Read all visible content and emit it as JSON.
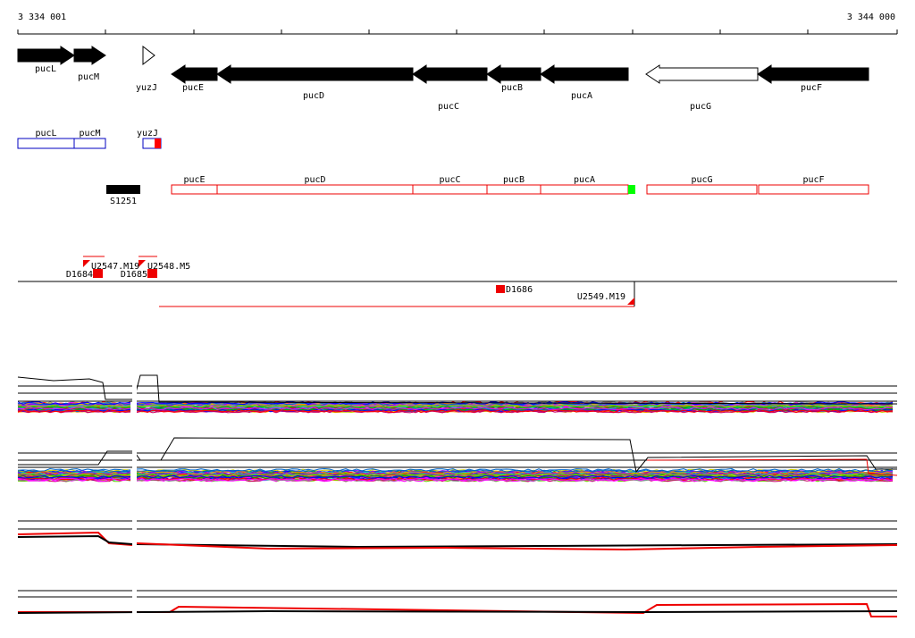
{
  "ruler": {
    "start": "3 334 001",
    "end": "3 344 000"
  },
  "genes": [
    "pucL",
    "pucM",
    "yuzJ",
    "pucE",
    "pucD",
    "pucC",
    "pucB",
    "pucA",
    "pucG",
    "pucF"
  ],
  "annotations_blue": [
    "pucL",
    "pucM",
    "yuzJ"
  ],
  "annotations_red": [
    "pucE",
    "pucD",
    "pucC",
    "pucB",
    "pucA",
    "pucG",
    "pucF"
  ],
  "segments": [
    "S1251"
  ],
  "probes": [
    "U2547.M19",
    "U2548.M5",
    "D1684",
    "D1685",
    "D1686",
    "U2549.M19"
  ]
}
